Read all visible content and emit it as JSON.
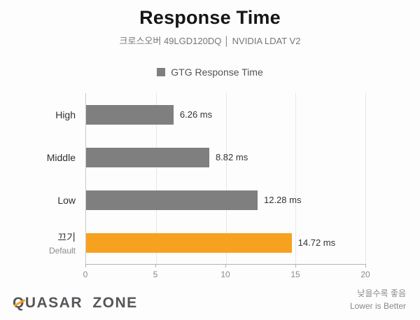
{
  "header": {
    "title": "Response Time",
    "subtitle": "크로스오버 49LGD120DQ │ NVIDIA LDAT V2"
  },
  "legend": {
    "label": "GTG Response Time",
    "color": "#7f7f7f"
  },
  "chart_data": {
    "type": "bar",
    "orientation": "horizontal",
    "title": "Response Time",
    "series_name": "GTG Response Time",
    "categories": [
      "High",
      "Middle",
      "Low",
      "끄기"
    ],
    "sub_labels": [
      "",
      "",
      "",
      "Default"
    ],
    "values": [
      6.26,
      8.82,
      12.28,
      14.72
    ],
    "value_labels": [
      "6.26 ms",
      "8.82 ms",
      "12.28 ms",
      "14.72 ms"
    ],
    "unit": "ms",
    "bar_colors": [
      "#7f7f7f",
      "#7f7f7f",
      "#7f7f7f",
      "#f6a220"
    ],
    "x_ticks": [
      0,
      5,
      10,
      15,
      20
    ],
    "xlim": [
      0,
      20
    ],
    "grid": true,
    "legend_position": "top"
  },
  "footer": {
    "logo": "QUASAR ZONE",
    "note_kr": "낮을수록 좋음",
    "note_en": "Lower is Better"
  }
}
